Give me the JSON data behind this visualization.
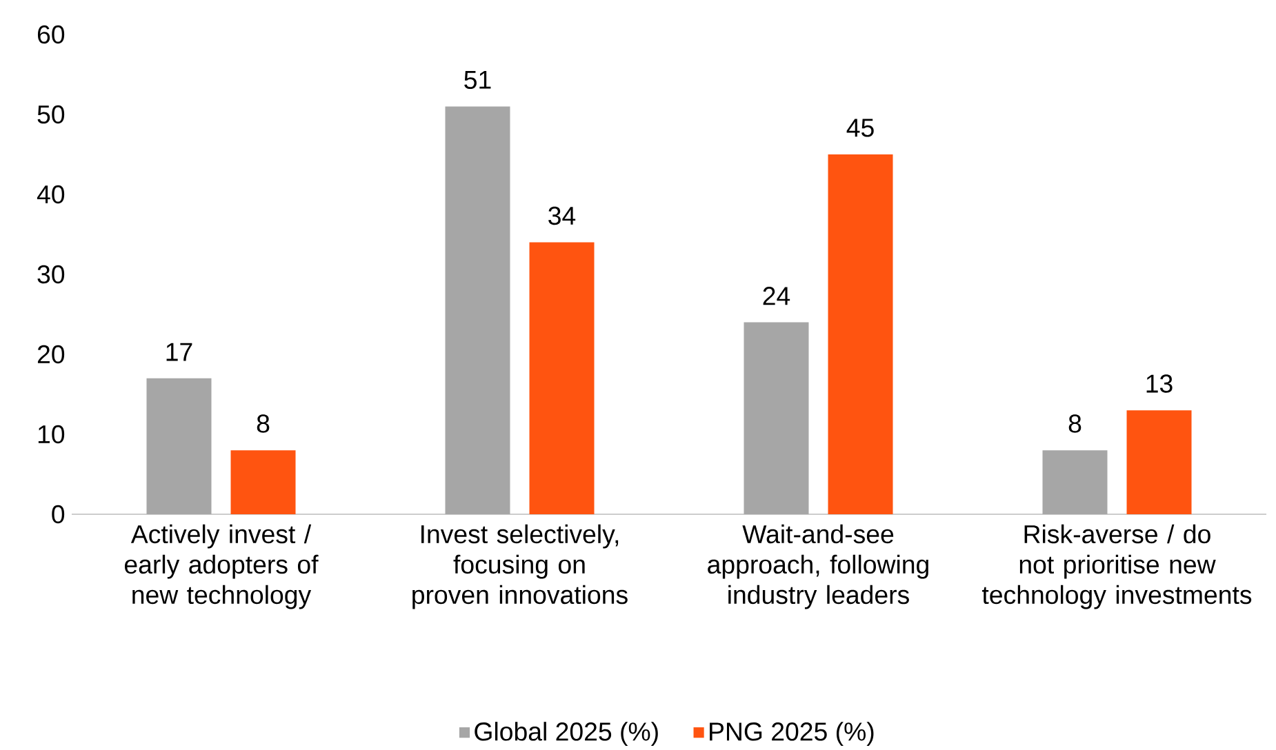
{
  "chart_data": {
    "type": "bar",
    "categories": [
      "Actively invest / early adopters of new technology",
      "Invest selectively, focusing on proven innovations",
      "Wait-and-see approach, following industry leaders",
      "Risk-averse / do not prioritise new technology investments"
    ],
    "series": [
      {
        "name": "Global 2025 (%)",
        "color": "#a6a6a6",
        "values": [
          17,
          51,
          24,
          8
        ]
      },
      {
        "name": "PNG 2025 (%)",
        "color": "#ff5410",
        "values": [
          8,
          34,
          45,
          13
        ]
      }
    ],
    "ylim": [
      0,
      60
    ],
    "yticks": [
      0,
      10,
      20,
      30,
      40,
      50,
      60
    ],
    "data_labels": true,
    "legend": "bottom",
    "grid": false
  }
}
